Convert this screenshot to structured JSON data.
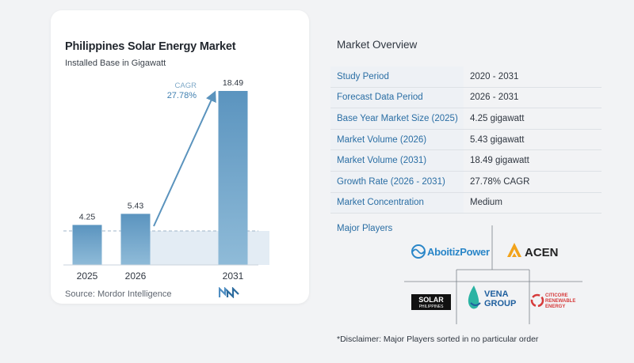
{
  "chart": {
    "title": "Philippines Solar Energy Market",
    "subtitle": "Installed Base in Gigawatt",
    "source": "Source:  Mordor Intelligence",
    "cagr_label": "CAGR",
    "cagr_value": "27.78%"
  },
  "chart_data": {
    "type": "bar",
    "title": "Philippines Solar Energy Market",
    "subtitle": "Installed Base in Gigawatt",
    "categories": [
      "2025",
      "2026",
      "2031"
    ],
    "values": [
      4.25,
      5.43,
      18.49
    ],
    "value_labels": [
      "4.25",
      "5.43",
      "18.49"
    ],
    "annotation": "CAGR 27.78%",
    "ylim": [
      0,
      18.49
    ],
    "grid": false,
    "bar_color": "#5a93bd"
  },
  "overview": {
    "title": "Market Overview",
    "rows": [
      {
        "label": "Study Period",
        "value": "2020 - 2031"
      },
      {
        "label": "Forecast Data Period",
        "value": "2026 - 2031"
      },
      {
        "label": "Base Year Market Size (2025)",
        "value": "4.25 gigawatt"
      },
      {
        "label": "Market Volume (2026)",
        "value": "5.43 gigawatt"
      },
      {
        "label": "Market Volume (2031)",
        "value": "18.49 gigawatt"
      },
      {
        "label": "Growth Rate (2026 - 2031)",
        "value": "27.78% CAGR"
      },
      {
        "label": "Market Concentration",
        "value": "Medium"
      }
    ]
  },
  "players": {
    "title": "Major Players",
    "logos": {
      "aboitiz": "AboitizPower",
      "acen": "ACEN",
      "solar_line1": "SOLAR",
      "solar_line2": "PHILIPPINES",
      "vena_line1": "VENA",
      "vena_line2": "GROUP",
      "citicore_line1": "CITICORE",
      "citicore_line2": "RENEWABLE",
      "citicore_line3": "ENERGY"
    }
  },
  "disclaimer": "*Disclaimer: Major Players sorted in no particular order",
  "colors": {
    "bar": "#5a93bd",
    "bar_light": "#dbe7f1",
    "accent_blue": "#2a6ea4",
    "acen_orange": "#f2a31b"
  }
}
